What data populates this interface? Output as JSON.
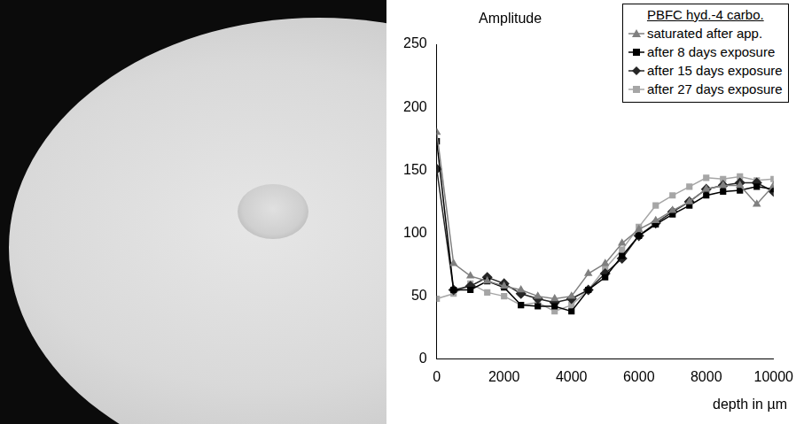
{
  "chart_data": {
    "type": "line",
    "y_label": "Amplitude",
    "x_label": "depth in µm",
    "legend_title": "PBFC hyd.-4 carbo.",
    "x": [
      0,
      500,
      1000,
      1500,
      2000,
      2500,
      3000,
      3500,
      4000,
      4500,
      5000,
      5500,
      6000,
      6500,
      7000,
      7500,
      8000,
      8500,
      9000,
      9500,
      10000
    ],
    "series": [
      {
        "name": "saturated after app.",
        "color": "#808080",
        "marker": "triangle",
        "values": [
          180,
          76,
          66,
          62,
          58,
          55,
          50,
          48,
          50,
          68,
          76,
          92,
          103,
          110,
          118,
          125,
          135,
          138,
          138,
          123,
          138
        ]
      },
      {
        "name": "after 8 days exposure",
        "color": "#000000",
        "marker": "square",
        "values": [
          173,
          55,
          55,
          62,
          57,
          43,
          42,
          42,
          38,
          55,
          65,
          82,
          98,
          107,
          115,
          122,
          130,
          133,
          134,
          137,
          135
        ]
      },
      {
        "name": "after 15 days exposure",
        "color": "#262626",
        "marker": "diamond",
        "values": [
          151,
          55,
          58,
          65,
          60,
          52,
          48,
          45,
          48,
          55,
          68,
          80,
          98,
          108,
          117,
          125,
          135,
          138,
          140,
          140,
          133
        ]
      },
      {
        "name": "after 27 days exposure",
        "color": "#a6a6a6",
        "marker": "square",
        "values": [
          48,
          52,
          60,
          53,
          50,
          43,
          45,
          38,
          43,
          55,
          72,
          87,
          105,
          122,
          130,
          137,
          144,
          143,
          145,
          142,
          143
        ]
      }
    ],
    "xlim": [
      0,
      10000
    ],
    "xticks": [
      0,
      2000,
      4000,
      6000,
      8000,
      10000
    ],
    "ylim": [
      0,
      250
    ],
    "yticks": [
      0,
      50,
      100,
      150,
      200,
      250
    ],
    "grid": false,
    "legend": "top-right"
  }
}
